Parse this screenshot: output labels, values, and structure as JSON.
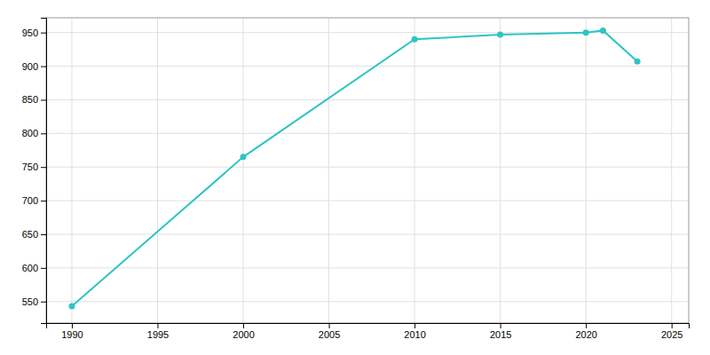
{
  "chart_data": {
    "type": "line",
    "x": [
      1990,
      2000,
      2010,
      2015,
      2020,
      2021,
      2023
    ],
    "values": [
      543,
      765,
      940,
      947,
      950,
      953,
      907
    ],
    "color": "#2EC4C4",
    "marker": "circle",
    "xlim": [
      1988.5,
      2026
    ],
    "ylim": [
      518,
      972
    ],
    "xticks": [
      1990,
      1995,
      2000,
      2005,
      2010,
      2015,
      2020,
      2025
    ],
    "yticks": [
      550,
      600,
      650,
      700,
      750,
      800,
      850,
      900,
      950
    ],
    "grid": true
  }
}
